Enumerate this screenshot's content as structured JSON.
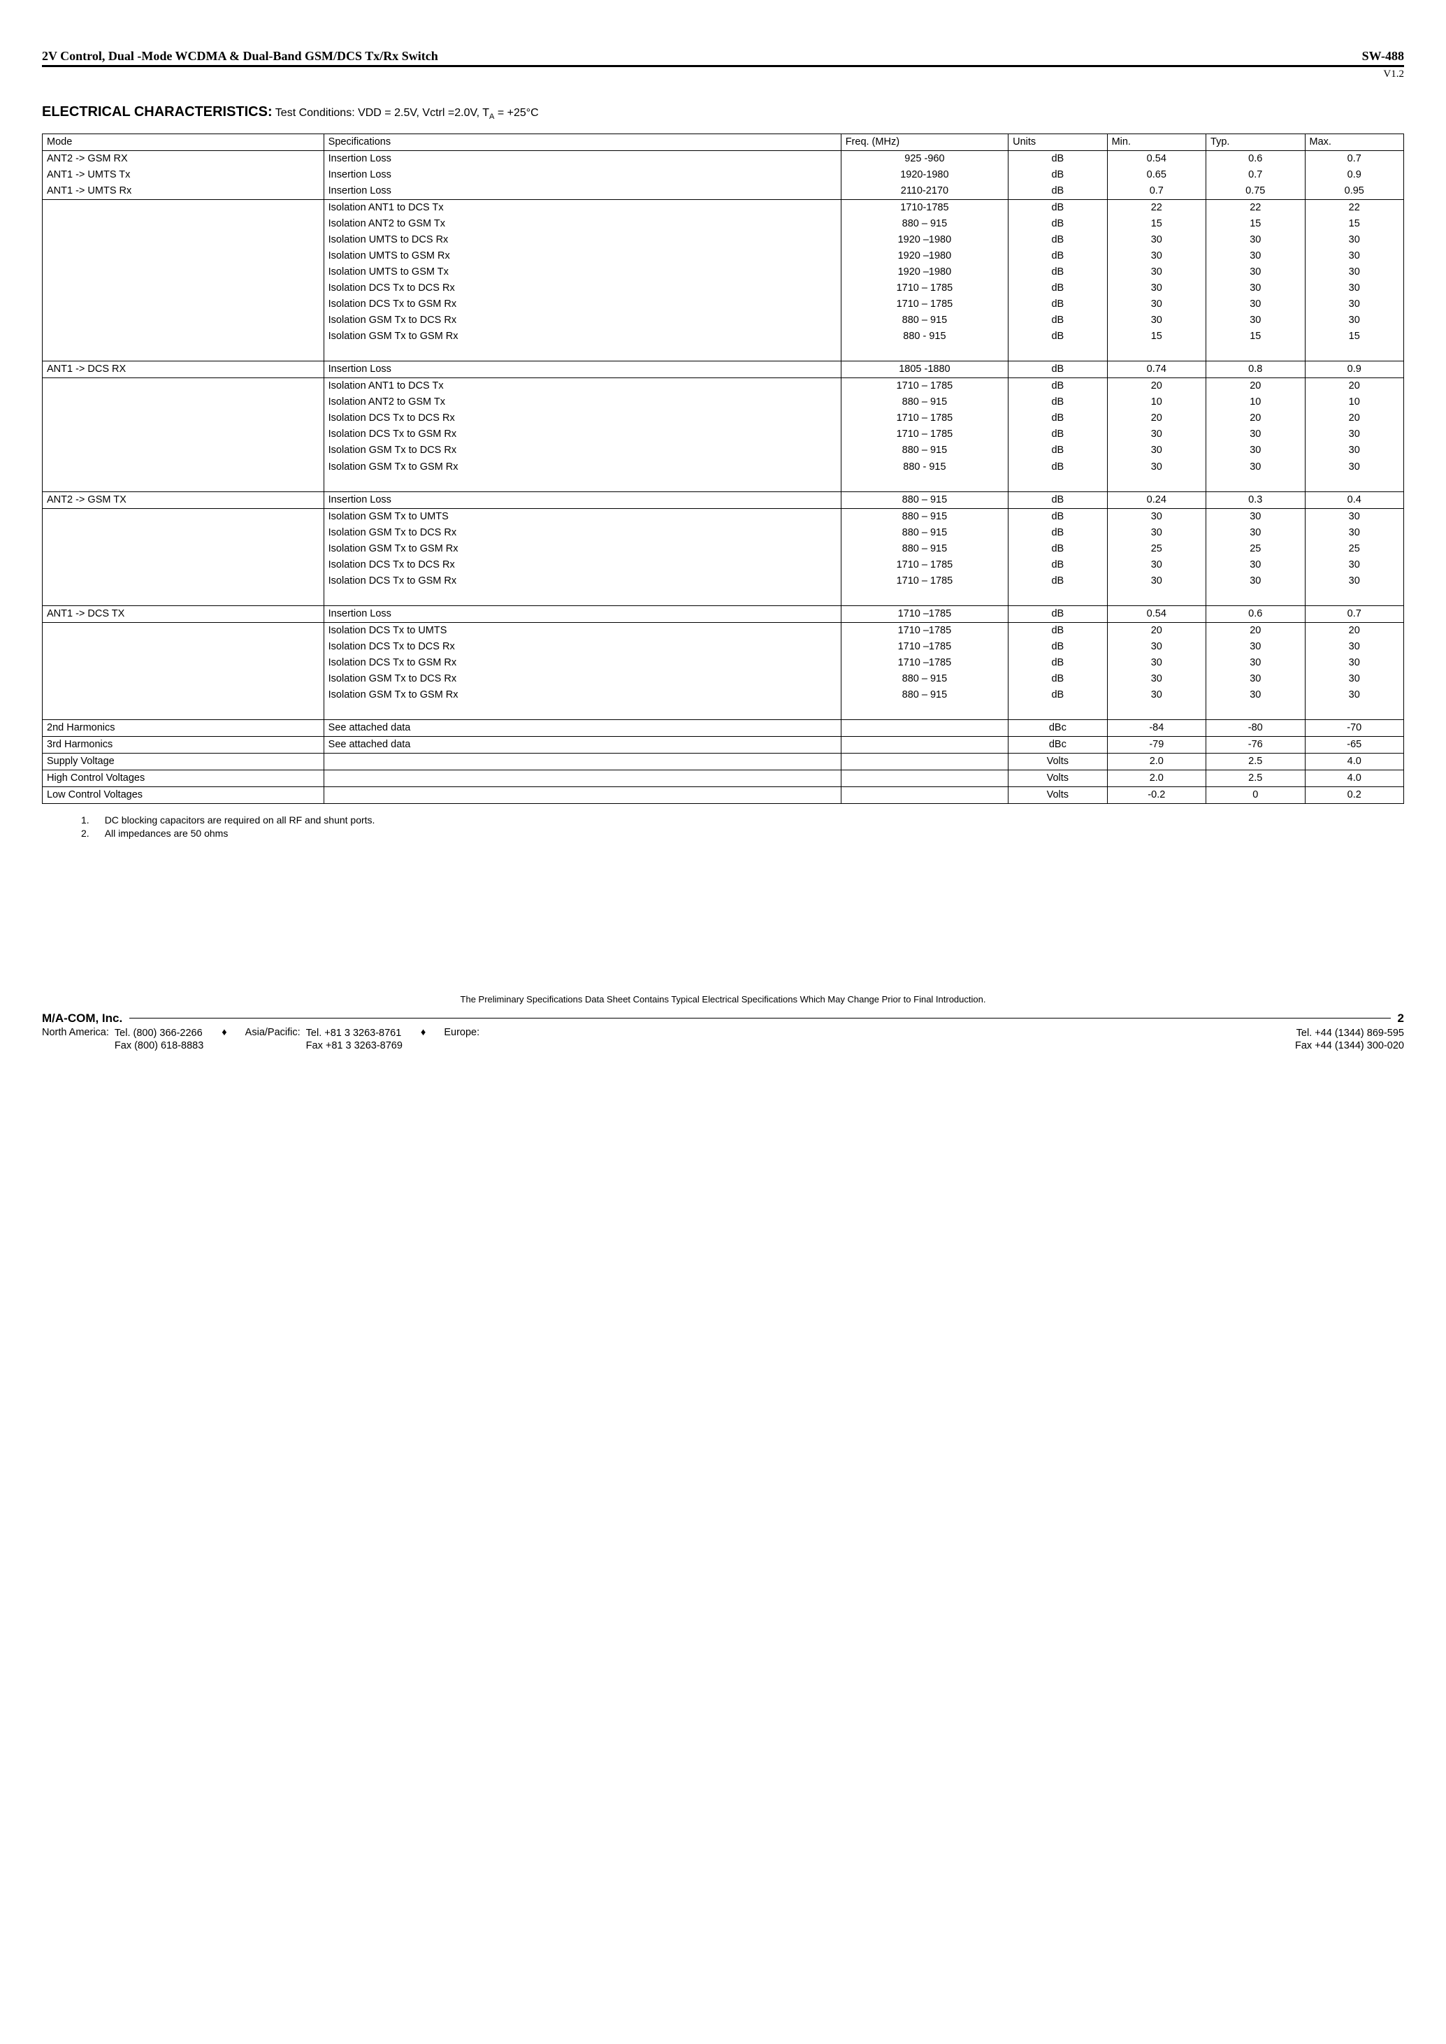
{
  "header": {
    "title_left": "2V Control, Dual -Mode WCDMA & Dual-Band GSM/DCS Tx/Rx Switch",
    "title_right": "SW-488",
    "version": "V1.2"
  },
  "section": {
    "label": "ELECTRICAL CHARACTERISTICS:",
    "conditions_prefix": " Test Conditions: VDD = 2.5V, Vctrl =2.0V, T",
    "conditions_sub": "A",
    "conditions_suffix": " = +25°C"
  },
  "table": {
    "headers": {
      "mode": "Mode",
      "spec": "Specifications",
      "freq": "Freq. (MHz)",
      "units": "Units",
      "min": "Min.",
      "typ": "Typ.",
      "max": "Max."
    },
    "groups": [
      {
        "rows": [
          {
            "mode": "ANT2 -> GSM RX",
            "spec": "Insertion Loss",
            "freq": "925 -960",
            "units": "dB",
            "min": "0.54",
            "typ": "0.6",
            "max": "0.7",
            "sep_top": true
          },
          {
            "mode": "ANT1 -> UMTS Tx",
            "spec": "Insertion Loss",
            "freq": "1920-1980",
            "units": "dB",
            "min": "0.65",
            "typ": "0.7",
            "max": "0.9"
          },
          {
            "mode": "ANT1 -> UMTS Rx",
            "spec": "Insertion Loss",
            "freq": "2110-2170",
            "units": "dB",
            "min": "0.7",
            "typ": "0.75",
            "max": "0.95"
          },
          {
            "mode": "",
            "spec": "Isolation ANT1 to DCS Tx",
            "freq": "1710-1785",
            "units": "dB",
            "min": "22",
            "typ": "22",
            "max": "22",
            "sep_top": true
          },
          {
            "mode": "",
            "spec": "Isolation ANT2 to GSM Tx",
            "freq": "880 – 915",
            "units": "dB",
            "min": "15",
            "typ": "15",
            "max": "15"
          },
          {
            "mode": "",
            "spec": "Isolation UMTS to DCS Rx",
            "freq": "1920 –1980",
            "units": "dB",
            "min": "30",
            "typ": "30",
            "max": "30"
          },
          {
            "mode": "",
            "spec": "Isolation UMTS to GSM Rx",
            "freq": "1920 –1980",
            "units": "dB",
            "min": "30",
            "typ": "30",
            "max": "30"
          },
          {
            "mode": "",
            "spec": "Isolation UMTS to GSM Tx",
            "freq": "1920 –1980",
            "units": "dB",
            "min": "30",
            "typ": "30",
            "max": "30"
          },
          {
            "mode": "",
            "spec": "Isolation DCS Tx to DCS Rx",
            "freq": "1710 – 1785",
            "units": "dB",
            "min": "30",
            "typ": "30",
            "max": "30"
          },
          {
            "mode": "",
            "spec": "Isolation DCS Tx to GSM Rx",
            "freq": "1710 – 1785",
            "units": "dB",
            "min": "30",
            "typ": "30",
            "max": "30"
          },
          {
            "mode": "",
            "spec": "Isolation GSM Tx to DCS Rx",
            "freq": "880 – 915",
            "units": "dB",
            "min": "30",
            "typ": "30",
            "max": "30"
          },
          {
            "mode": "",
            "spec": "Isolation GSM Tx to GSM Rx",
            "freq": "880 - 915",
            "units": "dB",
            "min": "15",
            "typ": "15",
            "max": "15"
          },
          {
            "blank": true
          }
        ]
      },
      {
        "rows": [
          {
            "mode": "ANT1 -> DCS RX",
            "spec": "Insertion Loss",
            "freq": "1805 -1880",
            "units": "dB",
            "min": "0.74",
            "typ": "0.8",
            "max": "0.9",
            "sep_top": true
          },
          {
            "mode": "",
            "spec": "Isolation ANT1 to DCS Tx",
            "freq": "1710 – 1785",
            "units": "dB",
            "min": "20",
            "typ": "20",
            "max": "20",
            "sep_top": true
          },
          {
            "mode": "",
            "spec": "Isolation ANT2 to GSM Tx",
            "freq": "880 – 915",
            "units": "dB",
            "min": "10",
            "typ": "10",
            "max": "10"
          },
          {
            "mode": "",
            "spec": "Isolation DCS Tx to DCS Rx",
            "freq": "1710 – 1785",
            "units": "dB",
            "min": "20",
            "typ": "20",
            "max": "20"
          },
          {
            "mode": "",
            "spec": "Isolation DCS Tx to GSM Rx",
            "freq": "1710 – 1785",
            "units": "dB",
            "min": "30",
            "typ": "30",
            "max": "30"
          },
          {
            "mode": "",
            "spec": "Isolation GSM Tx to DCS Rx",
            "freq": "880 – 915",
            "units": "dB",
            "min": "30",
            "typ": "30",
            "max": "30"
          },
          {
            "mode": "",
            "spec": "Isolation GSM Tx to GSM Rx",
            "freq": "880 - 915",
            "units": "dB",
            "min": "30",
            "typ": "30",
            "max": "30"
          },
          {
            "blank": true
          }
        ]
      },
      {
        "rows": [
          {
            "mode": "ANT2 -> GSM TX",
            "spec": "Insertion Loss",
            "freq": "880 – 915",
            "units": "dB",
            "min": "0.24",
            "typ": "0.3",
            "max": "0.4",
            "sep_top": true
          },
          {
            "mode": "",
            "spec": "Isolation GSM Tx to UMTS",
            "freq": "880 – 915",
            "units": "dB",
            "min": "30",
            "typ": "30",
            "max": "30",
            "sep_top": true
          },
          {
            "mode": "",
            "spec": "Isolation GSM Tx to DCS Rx",
            "freq": "880 – 915",
            "units": "dB",
            "min": "30",
            "typ": "30",
            "max": "30"
          },
          {
            "mode": "",
            "spec": "Isolation GSM Tx to GSM Rx",
            "freq": "880 – 915",
            "units": "dB",
            "min": "25",
            "typ": "25",
            "max": "25"
          },
          {
            "mode": "",
            "spec": "Isolation DCS Tx to DCS Rx",
            "freq": "1710 – 1785",
            "units": "dB",
            "min": "30",
            "typ": "30",
            "max": "30"
          },
          {
            "mode": "",
            "spec": "Isolation DCS Tx to GSM Rx",
            "freq": "1710 – 1785",
            "units": "dB",
            "min": "30",
            "typ": "30",
            "max": "30"
          },
          {
            "blank": true
          }
        ]
      },
      {
        "rows": [
          {
            "mode": "ANT1 -> DCS TX",
            "spec": "Insertion Loss",
            "freq": "1710 –1785",
            "units": "dB",
            "min": "0.54",
            "typ": "0.6",
            "max": "0.7",
            "sep_top": true
          },
          {
            "mode": "",
            "spec": "Isolation DCS Tx to UMTS",
            "freq": "1710 –1785",
            "units": "dB",
            "min": "20",
            "typ": "20",
            "max": "20",
            "sep_top": true
          },
          {
            "mode": "",
            "spec": "Isolation DCS Tx to DCS Rx",
            "freq": "1710 –1785",
            "units": "dB",
            "min": "30",
            "typ": "30",
            "max": "30"
          },
          {
            "mode": "",
            "spec": "Isolation DCS Tx to GSM Rx",
            "freq": "1710 –1785",
            "units": "dB",
            "min": "30",
            "typ": "30",
            "max": "30"
          },
          {
            "mode": "",
            "spec": "Isolation GSM Tx to DCS Rx",
            "freq": "880 – 915",
            "units": "dB",
            "min": "30",
            "typ": "30",
            "max": "30"
          },
          {
            "mode": "",
            "spec": "Isolation GSM Tx to GSM Rx",
            "freq": "880 – 915",
            "units": "dB",
            "min": "30",
            "typ": "30",
            "max": "30"
          },
          {
            "blank": true
          }
        ]
      },
      {
        "rows": [
          {
            "mode": "2nd Harmonics",
            "spec": "See attached data",
            "freq": "",
            "units": "dBc",
            "min": "-84",
            "typ": "-80",
            "max": "-70",
            "single": true
          },
          {
            "mode": "3rd Harmonics",
            "spec": "See attached data",
            "freq": "",
            "units": "dBc",
            "min": "-79",
            "typ": "-76",
            "max": "-65",
            "single": true
          },
          {
            "mode": "Supply Voltage",
            "spec": "",
            "freq": "",
            "units": "Volts",
            "min": "2.0",
            "typ": "2.5",
            "max": "4.0",
            "single": true
          },
          {
            "mode": "High Control Voltages",
            "spec": "",
            "freq": "",
            "units": "Volts",
            "min": "2.0",
            "typ": "2.5",
            "max": "4.0",
            "single": true
          },
          {
            "mode": "Low Control Voltages",
            "spec": "",
            "freq": "",
            "units": "Volts",
            "min": "-0.2",
            "typ": "0",
            "max": "0.2",
            "single": true,
            "last": true
          }
        ]
      }
    ]
  },
  "notes": {
    "n1_num": "1.",
    "n1": "DC blocking capacitors are required on all RF and shunt ports.",
    "n2_num": "2.",
    "n2": "All impedances are 50 ohms"
  },
  "disclaimer": "The Preliminary Specifications Data Sheet Contains Typical Electrical Specifications Which May Change Prior to Final Introduction.",
  "footer": {
    "company": "M/A-COM, Inc.",
    "page": "2",
    "na_label": "North America:",
    "na_tel": "Tel. (800) 366-2266",
    "na_fax": "Fax (800) 618-8883",
    "ap_label": "Asia/Pacific:",
    "ap_tel": "Tel. +81 3 3263-8761",
    "ap_fax": "Fax +81 3 3263-8769",
    "eu_label": "Europe:",
    "eu_tel": "Tel. +44 (1344) 869-595",
    "eu_fax": "Fax +44 (1344) 300-020"
  }
}
